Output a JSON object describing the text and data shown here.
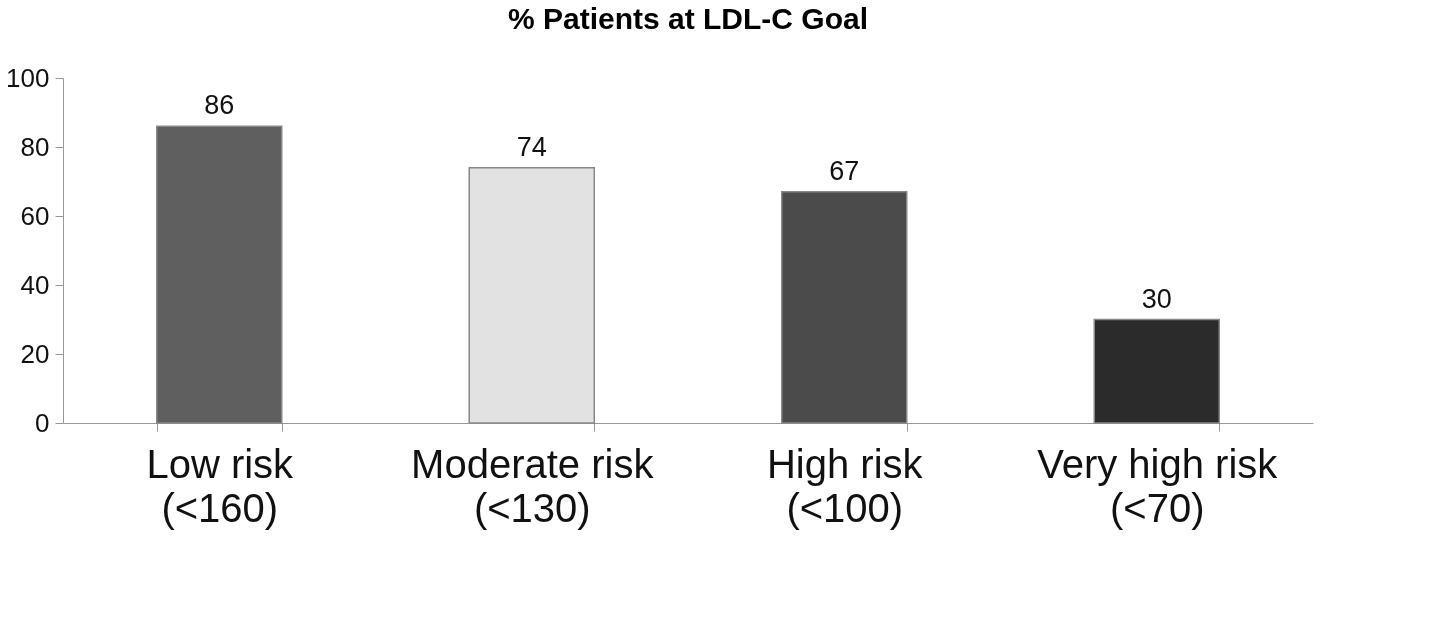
{
  "chart_data": {
    "type": "bar",
    "title": "% Patients at LDL-C Goal",
    "categories": [
      "Low risk\n(<160)",
      "Moderate risk\n(<130)",
      "High risk\n(<100)",
      "Very high risk\n(<70)"
    ],
    "values": [
      86,
      74,
      67,
      30
    ],
    "colors": [
      "#5f5f5f",
      "#e2e2e2",
      "#4b4b4b",
      "#2b2b2b"
    ],
    "ylim": [
      0,
      100
    ],
    "yticks": [
      0,
      20,
      40,
      60,
      80,
      100
    ],
    "grid": false,
    "data_labels": true
  }
}
